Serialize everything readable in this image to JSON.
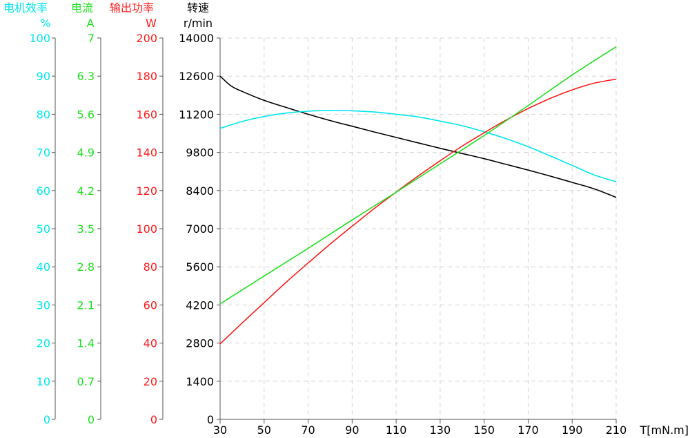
{
  "chart_data": {
    "type": "line",
    "x": {
      "label": "T[mN.m]",
      "range": [
        30,
        210
      ],
      "ticks": [
        30,
        50,
        70,
        90,
        110,
        130,
        150,
        170,
        190,
        210
      ]
    },
    "grid": true,
    "axes": [
      {
        "id": "efficiency",
        "title": "电机效率",
        "unit": "%",
        "color": "#00E5F0",
        "range": [
          0,
          100
        ],
        "ticks": [
          "0",
          "10",
          "20",
          "30",
          "40",
          "50",
          "60",
          "70",
          "80",
          "90",
          "100"
        ]
      },
      {
        "id": "current",
        "title": "电流",
        "unit": "A",
        "color": "#1EE01E",
        "range": [
          0,
          7
        ],
        "ticks": [
          "0",
          "0.7",
          "1.4",
          "2.1",
          "2.8",
          "3.5",
          "4.2",
          "4.9",
          "5.6",
          "6.3",
          "7"
        ]
      },
      {
        "id": "power",
        "title": "输出功率",
        "unit": "W",
        "color": "#FF1A1A",
        "range": [
          0,
          200
        ],
        "ticks": [
          "0",
          "20",
          "40",
          "60",
          "80",
          "100",
          "120",
          "140",
          "160",
          "180",
          "200"
        ]
      },
      {
        "id": "speed",
        "title": "转速",
        "unit": "r/min",
        "color": "#000000",
        "range": [
          0,
          14000
        ],
        "ticks": [
          "0",
          "1400",
          "2800",
          "4200",
          "5600",
          "7000",
          "8400",
          "9800",
          "11200",
          "12600",
          "14000"
        ]
      }
    ],
    "series": [
      {
        "axis": "speed",
        "color": "#000000",
        "x": [
          30,
          35,
          40,
          50,
          60,
          70,
          80,
          90,
          100,
          110,
          120,
          130,
          140,
          150,
          160,
          170,
          180,
          190,
          200,
          210
        ],
        "y": [
          12600,
          12240,
          12040,
          11710,
          11450,
          11200,
          10970,
          10760,
          10550,
          10350,
          10150,
          9950,
          9760,
          9570,
          9360,
          9150,
          8930,
          8700,
          8460,
          8150
        ]
      },
      {
        "axis": "efficiency",
        "color": "#00E5F0",
        "x": [
          30,
          40,
          50,
          60,
          70,
          80,
          90,
          100,
          110,
          120,
          130,
          140,
          150,
          160,
          170,
          180,
          190,
          200,
          210
        ],
        "y": [
          76.3,
          78.1,
          79.4,
          80.3,
          80.8,
          81.0,
          80.9,
          80.6,
          80.0,
          79.3,
          78.2,
          77.0,
          75.4,
          73.6,
          71.5,
          69.1,
          66.6,
          64.1,
          62.3
        ]
      },
      {
        "axis": "power",
        "color": "#FF1A1A",
        "x": [
          30,
          40,
          50,
          60,
          70,
          80,
          90,
          100,
          110,
          120,
          130,
          140,
          150,
          160,
          170,
          180,
          190,
          200,
          210
        ],
        "y": [
          39.6,
          50.5,
          61.2,
          71.9,
          82.0,
          91.9,
          101.3,
          110.5,
          119.2,
          127.6,
          135.6,
          143.3,
          150.3,
          157.0,
          163.0,
          168.3,
          172.8,
          176.3,
          178.4
        ]
      },
      {
        "axis": "current",
        "color": "#1EE01E",
        "x": [
          30,
          50,
          70,
          90,
          110,
          130,
          150,
          170,
          190,
          210
        ],
        "y": [
          2.12,
          2.63,
          3.14,
          3.66,
          4.17,
          4.69,
          5.21,
          5.76,
          6.32,
          6.84
        ]
      }
    ]
  }
}
